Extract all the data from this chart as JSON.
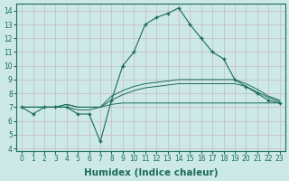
{
  "xlabel": "Humidex (Indice chaleur)",
  "ylabel": "",
  "xlim": [
    -0.5,
    23.5
  ],
  "ylim": [
    3.8,
    14.5
  ],
  "yticks": [
    4,
    5,
    6,
    7,
    8,
    9,
    10,
    11,
    12,
    13,
    14
  ],
  "xticks": [
    0,
    1,
    2,
    3,
    4,
    5,
    6,
    7,
    8,
    9,
    10,
    11,
    12,
    13,
    14,
    15,
    16,
    17,
    18,
    19,
    20,
    21,
    22,
    23
  ],
  "bg_color": "#cce9e5",
  "plot_bg_color": "#cce9e5",
  "line_color": "#1a6b5a",
  "grid_color": "#c8b8c8",
  "lines": [
    {
      "x": [
        0,
        1,
        2,
        3,
        4,
        5,
        6,
        7,
        8,
        9,
        10,
        11,
        12,
        13,
        14,
        15,
        16,
        17,
        18,
        19,
        20,
        21,
        22,
        23
      ],
      "y": [
        7.0,
        6.5,
        7.0,
        7.0,
        7.0,
        6.5,
        6.5,
        4.5,
        7.5,
        10.0,
        11.0,
        13.0,
        13.5,
        13.8,
        14.2,
        13.0,
        12.0,
        11.0,
        10.5,
        9.0,
        8.5,
        8.0,
        7.5,
        7.3
      ],
      "has_markers": true
    },
    {
      "x": [
        0,
        3,
        4,
        5,
        6,
        7,
        8,
        9,
        10,
        11,
        12,
        13,
        14,
        15,
        16,
        17,
        18,
        19,
        20,
        21,
        22,
        23
      ],
      "y": [
        7.0,
        7.0,
        7.2,
        7.0,
        7.0,
        7.0,
        7.8,
        8.2,
        8.5,
        8.7,
        8.8,
        8.9,
        9.0,
        9.0,
        9.0,
        9.0,
        9.0,
        9.0,
        8.7,
        8.3,
        7.8,
        7.5
      ],
      "has_markers": false
    },
    {
      "x": [
        0,
        3,
        4,
        5,
        6,
        7,
        8,
        9,
        10,
        11,
        12,
        13,
        14,
        15,
        16,
        17,
        18,
        19,
        20,
        21,
        22,
        23
      ],
      "y": [
        7.0,
        7.0,
        7.2,
        7.0,
        7.0,
        7.0,
        7.5,
        7.9,
        8.2,
        8.4,
        8.5,
        8.6,
        8.7,
        8.7,
        8.7,
        8.7,
        8.7,
        8.7,
        8.5,
        8.1,
        7.7,
        7.4
      ],
      "has_markers": false
    },
    {
      "x": [
        0,
        3,
        4,
        5,
        6,
        7,
        8,
        9,
        10,
        11,
        12,
        13,
        14,
        15,
        16,
        17,
        18,
        19,
        20,
        21,
        22,
        23
      ],
      "y": [
        7.0,
        7.0,
        7.0,
        6.8,
        6.8,
        7.0,
        7.2,
        7.3,
        7.3,
        7.3,
        7.3,
        7.3,
        7.3,
        7.3,
        7.3,
        7.3,
        7.3,
        7.3,
        7.3,
        7.3,
        7.3,
        7.3
      ],
      "has_markers": false
    }
  ],
  "tick_fontsize": 5.5,
  "label_fontsize": 7.5,
  "figsize": [
    3.2,
    2.0
  ],
  "dpi": 100
}
